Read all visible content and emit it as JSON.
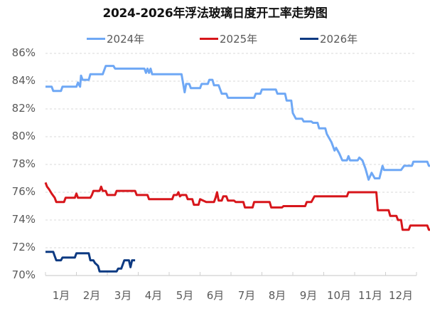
{
  "chart_data": {
    "type": "line",
    "title": "2024-2026年浮法玻璃日度开工率走势图",
    "xlabel": "",
    "ylabel": "",
    "ylim": [
      70,
      86
    ],
    "yticks": [
      "70%",
      "72%",
      "74%",
      "76%",
      "78%",
      "80%",
      "82%",
      "84%",
      "86%"
    ],
    "categories": [
      "1月",
      "2月",
      "3月",
      "4月",
      "5月",
      "6月",
      "7月",
      "8月",
      "9月",
      "10月",
      "11月",
      "12月"
    ],
    "grid": "horizontal dashed",
    "legend_position": "top",
    "series": [
      {
        "name": "2024年",
        "color": "#6FA8F5",
        "points": [
          [
            0,
            83.6
          ],
          [
            0.2,
            83.6
          ],
          [
            0.25,
            83.3
          ],
          [
            0.5,
            83.3
          ],
          [
            0.55,
            83.6
          ],
          [
            1.0,
            83.6
          ],
          [
            1.05,
            83.9
          ],
          [
            1.12,
            83.6
          ],
          [
            1.15,
            84.4
          ],
          [
            1.2,
            84.1
          ],
          [
            1.4,
            84.1
          ],
          [
            1.45,
            84.5
          ],
          [
            1.85,
            84.5
          ],
          [
            1.95,
            85.1
          ],
          [
            2.2,
            85.1
          ],
          [
            2.25,
            84.9
          ],
          [
            3.2,
            84.9
          ],
          [
            3.25,
            84.6
          ],
          [
            3.3,
            84.9
          ],
          [
            3.35,
            84.6
          ],
          [
            3.4,
            84.9
          ],
          [
            3.45,
            84.5
          ],
          [
            4.4,
            84.5
          ],
          [
            4.5,
            83.2
          ],
          [
            4.55,
            83.8
          ],
          [
            4.65,
            83.8
          ],
          [
            4.7,
            83.5
          ],
          [
            5.0,
            83.5
          ],
          [
            5.05,
            83.8
          ],
          [
            5.25,
            83.8
          ],
          [
            5.3,
            84.1
          ],
          [
            5.4,
            84.1
          ],
          [
            5.45,
            83.7
          ],
          [
            5.6,
            83.7
          ],
          [
            5.7,
            83.1
          ],
          [
            5.85,
            83.1
          ],
          [
            5.9,
            82.8
          ],
          [
            6.75,
            82.8
          ],
          [
            6.8,
            83.1
          ],
          [
            6.95,
            83.1
          ],
          [
            7.0,
            83.4
          ],
          [
            7.45,
            83.4
          ],
          [
            7.5,
            83.1
          ],
          [
            7.75,
            83.1
          ],
          [
            7.8,
            82.6
          ],
          [
            7.95,
            82.6
          ],
          [
            8.0,
            81.7
          ],
          [
            8.1,
            81.3
          ],
          [
            8.3,
            81.3
          ],
          [
            8.35,
            81.1
          ],
          [
            8.6,
            81.1
          ],
          [
            8.65,
            81.0
          ],
          [
            8.8,
            81.0
          ],
          [
            8.85,
            80.6
          ],
          [
            9.05,
            80.6
          ],
          [
            9.1,
            80.2
          ],
          [
            9.25,
            79.6
          ],
          [
            9.35,
            79.0
          ],
          [
            9.4,
            79.2
          ],
          [
            9.5,
            78.8
          ],
          [
            9.6,
            78.3
          ],
          [
            9.75,
            78.3
          ],
          [
            9.8,
            78.6
          ],
          [
            9.85,
            78.3
          ],
          [
            10.1,
            78.3
          ],
          [
            10.15,
            78.5
          ],
          [
            10.25,
            78.3
          ],
          [
            10.35,
            77.7
          ],
          [
            10.45,
            76.9
          ],
          [
            10.55,
            77.4
          ],
          [
            10.65,
            77.0
          ],
          [
            10.8,
            77.0
          ],
          [
            10.9,
            77.9
          ],
          [
            10.95,
            77.6
          ],
          [
            11.5,
            77.6
          ],
          [
            11.6,
            77.9
          ],
          [
            11.85,
            77.9
          ],
          [
            11.9,
            78.2
          ],
          [
            12.35,
            78.2
          ],
          [
            12.4,
            77.9
          ],
          [
            12.6,
            77.9
          ],
          [
            12.65,
            77.6
          ],
          [
            12.75,
            77.2
          ]
        ]
      },
      {
        "name": "2025年",
        "color": "#D7161B",
        "points": [
          [
            0,
            76.7
          ],
          [
            0.05,
            76.4
          ],
          [
            0.12,
            76.2
          ],
          [
            0.2,
            75.9
          ],
          [
            0.3,
            75.6
          ],
          [
            0.35,
            75.3
          ],
          [
            0.6,
            75.3
          ],
          [
            0.65,
            75.6
          ],
          [
            0.95,
            75.6
          ],
          [
            1.0,
            75.9
          ],
          [
            1.05,
            75.6
          ],
          [
            1.45,
            75.6
          ],
          [
            1.5,
            75.8
          ],
          [
            1.55,
            76.1
          ],
          [
            1.75,
            76.1
          ],
          [
            1.8,
            76.4
          ],
          [
            1.85,
            76.1
          ],
          [
            1.95,
            76.1
          ],
          [
            2.0,
            75.8
          ],
          [
            2.25,
            75.8
          ],
          [
            2.3,
            76.1
          ],
          [
            2.9,
            76.1
          ],
          [
            2.95,
            75.8
          ],
          [
            3.3,
            75.8
          ],
          [
            3.35,
            75.5
          ],
          [
            4.1,
            75.5
          ],
          [
            4.15,
            75.8
          ],
          [
            4.25,
            75.8
          ],
          [
            4.3,
            76.0
          ],
          [
            4.35,
            75.7
          ],
          [
            4.4,
            75.8
          ],
          [
            4.55,
            75.8
          ],
          [
            4.6,
            75.5
          ],
          [
            4.75,
            75.5
          ],
          [
            4.8,
            75.1
          ],
          [
            4.95,
            75.1
          ],
          [
            5.0,
            75.5
          ],
          [
            5.2,
            75.3
          ],
          [
            5.45,
            75.3
          ],
          [
            5.5,
            75.6
          ],
          [
            5.55,
            76.0
          ],
          [
            5.6,
            75.4
          ],
          [
            5.7,
            75.4
          ],
          [
            5.75,
            75.7
          ],
          [
            5.85,
            75.7
          ],
          [
            5.9,
            75.4
          ],
          [
            6.1,
            75.4
          ],
          [
            6.15,
            75.3
          ],
          [
            6.4,
            75.3
          ],
          [
            6.45,
            74.9
          ],
          [
            6.7,
            74.9
          ],
          [
            6.75,
            75.3
          ],
          [
            7.25,
            75.3
          ],
          [
            7.3,
            74.9
          ],
          [
            7.65,
            74.9
          ],
          [
            7.7,
            75.0
          ],
          [
            8.4,
            75.0
          ],
          [
            8.45,
            75.3
          ],
          [
            8.6,
            75.3
          ],
          [
            8.7,
            75.7
          ],
          [
            9.75,
            75.7
          ],
          [
            9.8,
            76.0
          ],
          [
            10.7,
            76.0
          ],
          [
            10.75,
            74.7
          ],
          [
            11.1,
            74.7
          ],
          [
            11.15,
            74.3
          ],
          [
            11.35,
            74.3
          ],
          [
            11.4,
            74.0
          ],
          [
            11.5,
            74.0
          ],
          [
            11.55,
            73.3
          ],
          [
            11.75,
            73.3
          ],
          [
            11.8,
            73.6
          ],
          [
            12.35,
            73.6
          ],
          [
            12.4,
            73.3
          ],
          [
            12.6,
            73.3
          ],
          [
            12.75,
            72.0
          ]
        ]
      },
      {
        "name": "2026年",
        "color": "#0D3A82",
        "points": [
          [
            0,
            71.7
          ],
          [
            0.25,
            71.7
          ],
          [
            0.3,
            71.4
          ],
          [
            0.35,
            71.1
          ],
          [
            0.5,
            71.1
          ],
          [
            0.55,
            71.3
          ],
          [
            0.95,
            71.3
          ],
          [
            1.0,
            71.6
          ],
          [
            1.4,
            71.6
          ],
          [
            1.45,
            71.1
          ],
          [
            1.55,
            71.1
          ],
          [
            1.6,
            70.9
          ],
          [
            1.7,
            70.7
          ],
          [
            1.75,
            70.3
          ],
          [
            2.3,
            70.3
          ],
          [
            2.35,
            70.5
          ],
          [
            2.45,
            70.5
          ],
          [
            2.55,
            71.1
          ],
          [
            2.7,
            71.1
          ],
          [
            2.75,
            70.6
          ],
          [
            2.8,
            71.1
          ],
          [
            2.9,
            71.1
          ]
        ]
      }
    ]
  },
  "legend": [
    {
      "label": "2024年",
      "color": "#6FA8F5"
    },
    {
      "label": "2025年",
      "color": "#D7161B"
    },
    {
      "label": "2026年",
      "color": "#0D3A82"
    }
  ]
}
